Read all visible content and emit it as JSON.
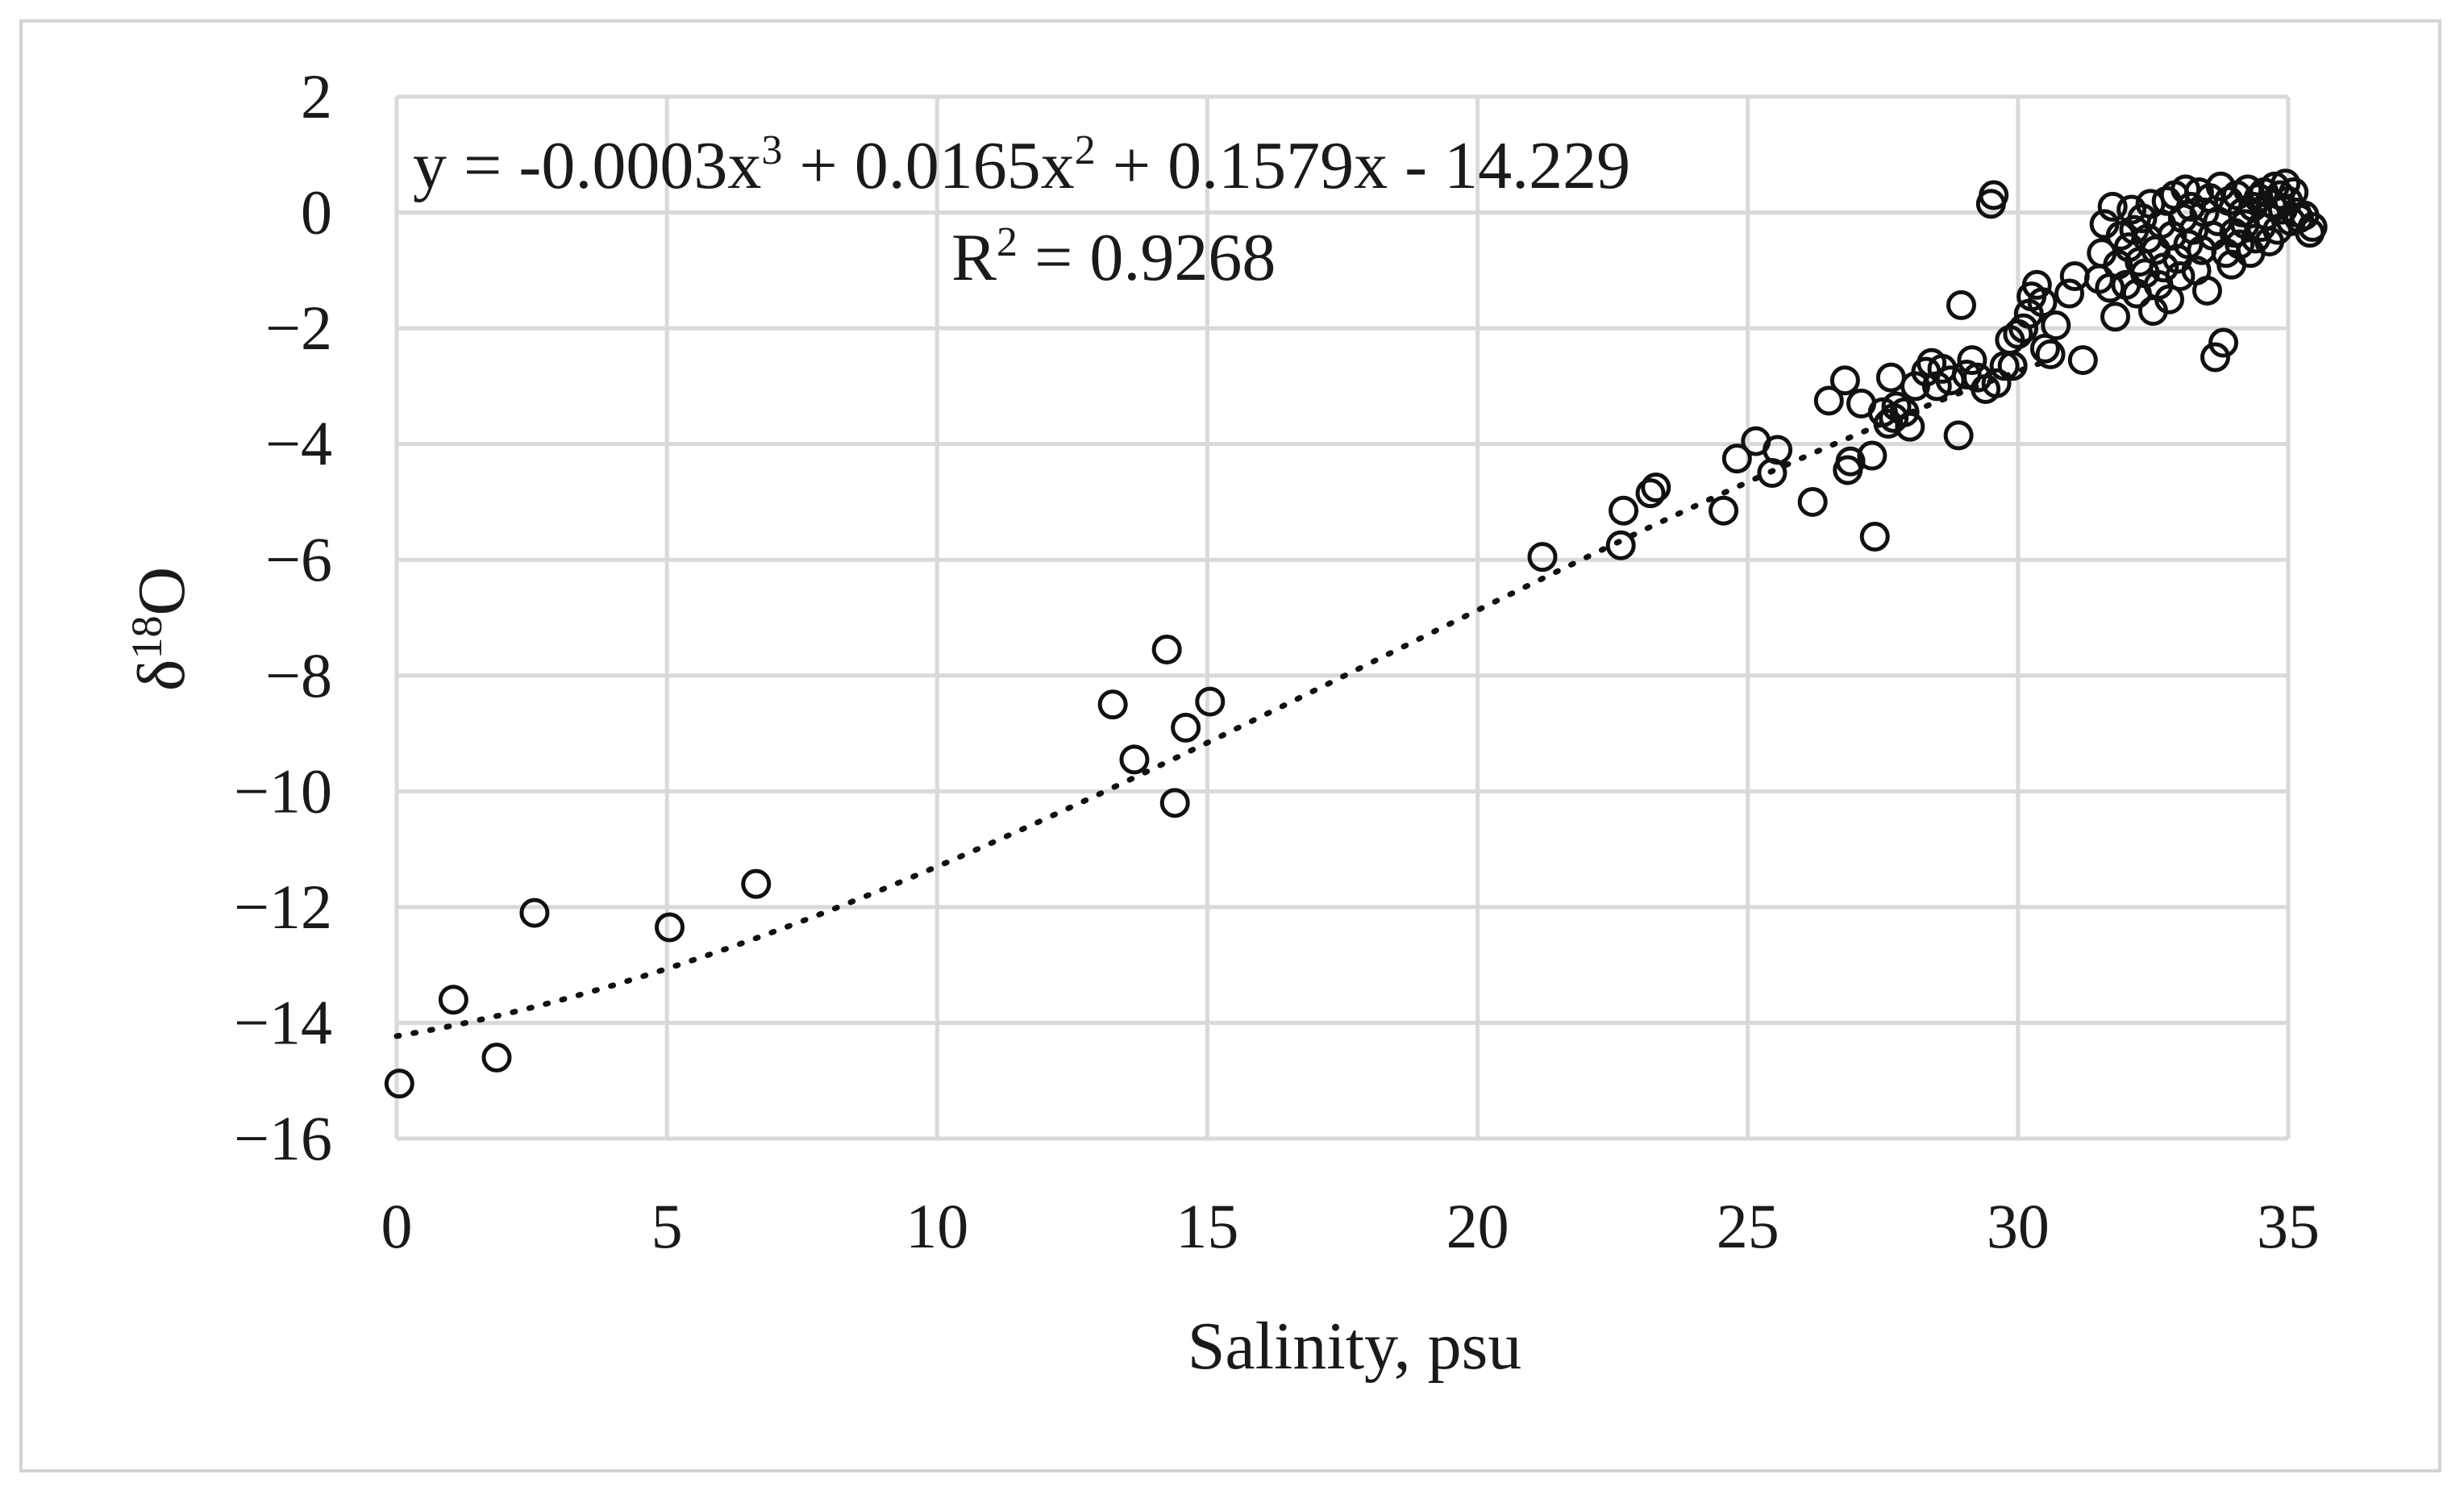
{
  "chart_data": {
    "type": "scatter",
    "xlabel": "Salinity, psu",
    "ylabel_base": "δ",
    "ylabel_sup": "18",
    "ylabel_tail": "O",
    "xlim": [
      0,
      35
    ],
    "ylim": [
      -16,
      2
    ],
    "x_ticks": [
      0,
      5,
      10,
      15,
      20,
      25,
      30,
      35
    ],
    "x_tick_labels": [
      "0",
      "5",
      "10",
      "15",
      "20",
      "25",
      "30",
      "35"
    ],
    "y_ticks": [
      -16,
      -14,
      -12,
      -10,
      -8,
      -6,
      -4,
      -2,
      0,
      2
    ],
    "y_tick_labels": [
      "−16",
      "−14",
      "−12",
      "−10",
      "−8",
      "−6",
      "−4",
      "−2",
      "0",
      "2"
    ],
    "grid": true,
    "marker": "open-circle",
    "trendline": {
      "type": "polynomial",
      "degree": 3,
      "coefficients": [
        -0.0003,
        0.0165,
        0.1579,
        -14.229
      ],
      "x_range": [
        0,
        30.5
      ],
      "style": "dotted"
    },
    "annotations": {
      "equation": {
        "y_part": "y = -0.0003x",
        "exp3": "3",
        "mid_part": " + 0.0165x",
        "exp2": "2",
        "tail_part": " + 0.1579x - 14.229"
      },
      "r2": {
        "r_part": "R",
        "exp": "2",
        "value_part": " = 0.9268"
      }
    },
    "points": [
      [
        0.05,
        -15.05
      ],
      [
        1.05,
        -13.6
      ],
      [
        1.85,
        -14.6
      ],
      [
        2.55,
        -12.1
      ],
      [
        5.05,
        -12.35
      ],
      [
        6.65,
        -11.6
      ],
      [
        13.25,
        -8.5
      ],
      [
        13.65,
        -9.45
      ],
      [
        14.25,
        -7.55
      ],
      [
        14.4,
        -10.2
      ],
      [
        14.6,
        -8.9
      ],
      [
        15.05,
        -8.45
      ],
      [
        21.2,
        -5.95
      ],
      [
        22.65,
        -5.75
      ],
      [
        22.7,
        -5.15
      ],
      [
        23.2,
        -4.85
      ],
      [
        23.3,
        -4.75
      ],
      [
        24.55,
        -5.15
      ],
      [
        24.8,
        -4.25
      ],
      [
        25.15,
        -3.95
      ],
      [
        25.45,
        -4.5
      ],
      [
        25.55,
        -4.1
      ],
      [
        26.2,
        -5.0
      ],
      [
        26.5,
        -3.25
      ],
      [
        26.8,
        -2.9
      ],
      [
        26.85,
        -4.45
      ],
      [
        26.9,
        -4.3
      ],
      [
        27.1,
        -3.3
      ],
      [
        27.3,
        -4.2
      ],
      [
        27.35,
        -5.6
      ],
      [
        27.5,
        -3.45
      ],
      [
        27.6,
        -3.65
      ],
      [
        27.65,
        -2.85
      ],
      [
        27.7,
        -3.55
      ],
      [
        27.75,
        -3.35
      ],
      [
        27.9,
        -3.45
      ],
      [
        28.0,
        -3.7
      ],
      [
        28.1,
        -3.0
      ],
      [
        28.3,
        -2.75
      ],
      [
        28.4,
        -2.6
      ],
      [
        28.5,
        -3.0
      ],
      [
        28.6,
        -2.7
      ],
      [
        28.75,
        -2.9
      ],
      [
        28.9,
        -3.85
      ],
      [
        28.95,
        -1.6
      ],
      [
        29.05,
        -2.8
      ],
      [
        29.15,
        -2.55
      ],
      [
        29.25,
        -2.85
      ],
      [
        29.4,
        -3.05
      ],
      [
        29.5,
        0.15
      ],
      [
        29.55,
        0.3
      ],
      [
        29.6,
        -2.95
      ],
      [
        29.75,
        -2.65
      ],
      [
        29.85,
        -2.2
      ],
      [
        29.9,
        -2.65
      ],
      [
        30.0,
        -2.1
      ],
      [
        30.1,
        -2.0
      ],
      [
        30.2,
        -1.75
      ],
      [
        30.25,
        -1.45
      ],
      [
        30.35,
        -1.25
      ],
      [
        30.45,
        -1.55
      ],
      [
        30.5,
        -2.35
      ],
      [
        30.6,
        -2.45
      ],
      [
        30.7,
        -1.95
      ],
      [
        30.95,
        -1.4
      ],
      [
        31.05,
        -1.1
      ],
      [
        31.2,
        -2.55
      ],
      [
        31.5,
        -1.15
      ],
      [
        31.55,
        -0.7
      ],
      [
        31.6,
        -0.2
      ],
      [
        31.7,
        -1.3
      ],
      [
        31.75,
        0.1
      ],
      [
        31.8,
        -1.8
      ],
      [
        31.85,
        -0.9
      ],
      [
        31.9,
        -0.4
      ],
      [
        32.0,
        -1.25
      ],
      [
        32.05,
        -0.6
      ],
      [
        32.1,
        0.05
      ],
      [
        32.15,
        -0.3
      ],
      [
        32.2,
        -1.4
      ],
      [
        32.25,
        -0.85
      ],
      [
        32.3,
        -0.1
      ],
      [
        32.35,
        -1.05
      ],
      [
        32.4,
        -0.45
      ],
      [
        32.45,
        0.15
      ],
      [
        32.5,
        -1.7
      ],
      [
        32.55,
        -0.65
      ],
      [
        32.6,
        -1.25
      ],
      [
        32.65,
        -0.2
      ],
      [
        32.7,
        -0.95
      ],
      [
        32.75,
        0.2
      ],
      [
        32.8,
        -1.5
      ],
      [
        32.85,
        -0.4
      ],
      [
        32.9,
        0.3
      ],
      [
        32.95,
        -0.8
      ],
      [
        33.0,
        -1.1
      ],
      [
        33.05,
        -0.1
      ],
      [
        33.1,
        0.4
      ],
      [
        33.15,
        -0.55
      ],
      [
        33.2,
        0.1
      ],
      [
        33.25,
        -0.3
      ],
      [
        33.3,
        -1.0
      ],
      [
        33.35,
        0.35
      ],
      [
        33.4,
        -0.65
      ],
      [
        33.45,
        0.0
      ],
      [
        33.5,
        -1.35
      ],
      [
        33.55,
        0.25
      ],
      [
        33.6,
        -0.4
      ],
      [
        33.65,
        -2.5
      ],
      [
        33.7,
        -0.15
      ],
      [
        33.75,
        0.45
      ],
      [
        33.8,
        -2.25
      ],
      [
        33.85,
        -0.7
      ],
      [
        33.9,
        0.2
      ],
      [
        33.95,
        -0.9
      ],
      [
        34.0,
        -0.35
      ],
      [
        34.05,
        0.3
      ],
      [
        34.1,
        -0.55
      ],
      [
        34.15,
        0.0
      ],
      [
        34.2,
        -0.2
      ],
      [
        34.25,
        0.4
      ],
      [
        34.3,
        -0.7
      ],
      [
        34.35,
        0.1
      ],
      [
        34.4,
        -0.45
      ],
      [
        34.45,
        0.25
      ],
      [
        34.5,
        -0.25
      ],
      [
        34.55,
        0.35
      ],
      [
        34.6,
        -0.05
      ],
      [
        34.65,
        -0.5
      ],
      [
        34.7,
        0.15
      ],
      [
        34.75,
        0.45
      ],
      [
        34.8,
        -0.3
      ],
      [
        34.85,
        0.3
      ],
      [
        34.9,
        0.05
      ],
      [
        34.95,
        0.5
      ],
      [
        35.0,
        0.2
      ],
      [
        35.05,
        -0.15
      ],
      [
        35.1,
        0.35
      ],
      [
        35.15,
        0.0
      ],
      [
        35.2,
        -0.1
      ],
      [
        35.3,
        -0.05
      ],
      [
        35.4,
        -0.35
      ],
      [
        35.45,
        -0.25
      ]
    ]
  }
}
